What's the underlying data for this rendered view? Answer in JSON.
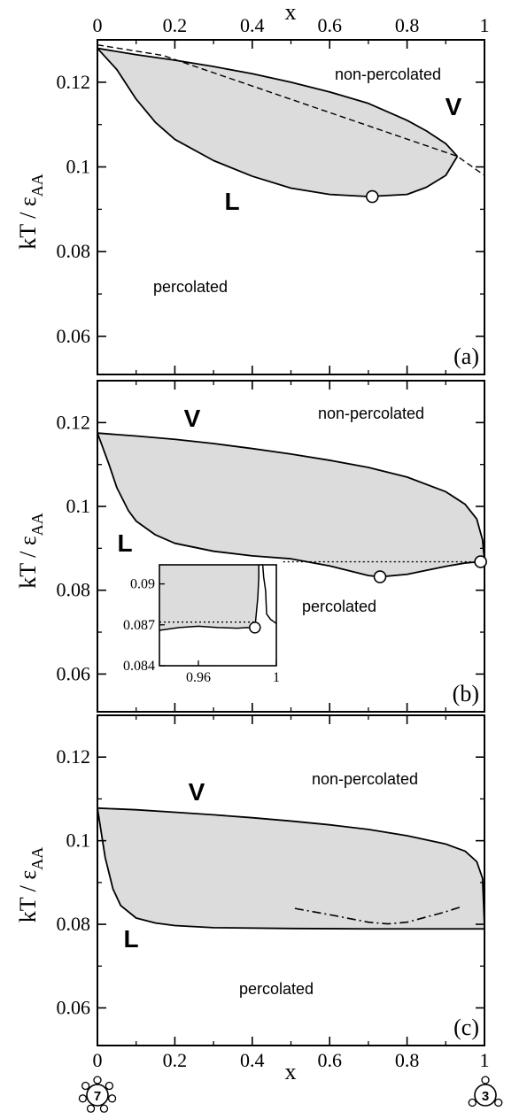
{
  "figure": {
    "x_axis_label": "x",
    "y_axis_label_main": "kT / ε",
    "y_axis_label_sub": "AA",
    "x_tick_labels": [
      "0",
      "0.2",
      "0.4",
      "0.6",
      "0.8",
      "1"
    ],
    "y_tick_labels": [
      "0.06",
      "0.08",
      "0.1",
      "0.12"
    ],
    "molecule_left_label": "7",
    "molecule_right_label": "3"
  },
  "chart_data": [
    {
      "type": "area",
      "panel_label": "(a)",
      "xlim": [
        0,
        1
      ],
      "ylim": [
        0.051,
        0.13
      ],
      "grid": false,
      "labels": {
        "vapor": "V",
        "liquid": "L",
        "upper_region": "non-percolated",
        "lower_region": "percolated"
      },
      "dew_curve": {
        "x": [
          0,
          0.1,
          0.2,
          0.3,
          0.4,
          0.5,
          0.6,
          0.7,
          0.8,
          0.85,
          0.9,
          0.93
        ],
        "y": [
          0.128,
          0.1265,
          0.1252,
          0.1237,
          0.122,
          0.12,
          0.1177,
          0.115,
          0.111,
          0.1085,
          0.1055,
          0.1025
        ]
      },
      "bubble_curve": {
        "x": [
          0,
          0.05,
          0.1,
          0.15,
          0.2,
          0.3,
          0.4,
          0.5,
          0.6,
          0.7,
          0.8,
          0.85,
          0.9,
          0.93
        ],
        "y": [
          0.128,
          0.123,
          0.116,
          0.1105,
          0.1065,
          0.1015,
          0.0978,
          0.095,
          0.0935,
          0.093,
          0.0935,
          0.0952,
          0.098,
          0.1025
        ]
      },
      "percolation_line": {
        "x": [
          0,
          0.17,
          0.93,
          1.0
        ],
        "y": [
          0.1288,
          0.1263,
          0.1025,
          0.098
        ]
      },
      "critical_points": [
        {
          "x": 0.71,
          "y": 0.093
        }
      ]
    },
    {
      "type": "area",
      "panel_label": "(b)",
      "xlim": [
        0,
        1
      ],
      "ylim": [
        0.051,
        0.13
      ],
      "grid": false,
      "labels": {
        "vapor": "V",
        "liquid": "L",
        "upper_region": "non-percolated",
        "lower_region": "percolated"
      },
      "dew_curve": {
        "x": [
          0,
          0.1,
          0.2,
          0.3,
          0.4,
          0.5,
          0.6,
          0.7,
          0.8,
          0.9,
          0.95,
          0.98,
          0.995,
          1.0
        ],
        "y": [
          0.1175,
          0.1168,
          0.116,
          0.115,
          0.1138,
          0.1125,
          0.111,
          0.1093,
          0.107,
          0.1035,
          0.1005,
          0.097,
          0.092,
          0.087
        ]
      },
      "bubble_curve": {
        "x": [
          0,
          0.03,
          0.05,
          0.08,
          0.1,
          0.15,
          0.2,
          0.3,
          0.4,
          0.5,
          0.6,
          0.7,
          0.73,
          0.8,
          0.9,
          0.95,
          0.99
        ],
        "y": [
          0.1175,
          0.11,
          0.1045,
          0.099,
          0.0965,
          0.0932,
          0.0912,
          0.0893,
          0.0882,
          0.0875,
          0.0858,
          0.0835,
          0.0832,
          0.0838,
          0.0857,
          0.0865,
          0.0868
        ]
      },
      "three_phase_line": {
        "x": [
          0.48,
          0.99
        ],
        "y": [
          0.0868,
          0.0868
        ]
      },
      "critical_points": [
        {
          "x": 0.73,
          "y": 0.0832
        },
        {
          "x": 0.99,
          "y": 0.0868
        }
      ],
      "inset": {
        "xlim": [
          0.94,
          1.0
        ],
        "ylim": [
          0.084,
          0.0914
        ],
        "x_tick_labels": [
          "0.96",
          "1"
        ],
        "y_tick_labels": [
          "0.084",
          "0.087",
          "0.09"
        ],
        "bubble_curve": {
          "x": [
            0.94,
            0.95,
            0.96,
            0.97,
            0.98,
            0.985,
            0.989
          ],
          "y": [
            0.0866,
            0.0868,
            0.0869,
            0.0868,
            0.08675,
            0.0868,
            0.08675
          ]
        },
        "dew_curve": {
          "x": [
            0.989,
            0.9895,
            0.9905,
            0.991,
            0.991
          ],
          "y": [
            0.08675,
            0.0875,
            0.089,
            0.0905,
            0.0914
          ]
        },
        "dew_curve_2": {
          "x": [
            0.993,
            0.9935,
            0.9945,
            0.995,
            0.997,
            1.0
          ],
          "y": [
            0.0914,
            0.0905,
            0.0895,
            0.0878,
            0.0874,
            0.0871
          ]
        },
        "three_phase_line": {
          "x": [
            0.94,
            0.989
          ],
          "y": [
            0.0872,
            0.0872
          ]
        },
        "critical_points": [
          {
            "x": 0.989,
            "y": 0.0868
          }
        ]
      }
    },
    {
      "type": "area",
      "panel_label": "(c)",
      "xlim": [
        0,
        1
      ],
      "ylim": [
        0.051,
        0.13
      ],
      "grid": false,
      "labels": {
        "vapor": "V",
        "liquid": "L",
        "upper_region": "non-percolated",
        "lower_region": "percolated"
      },
      "dew_curve": {
        "x": [
          0,
          0.1,
          0.2,
          0.3,
          0.4,
          0.5,
          0.6,
          0.7,
          0.8,
          0.9,
          0.95,
          0.98,
          0.995,
          1.0
        ],
        "y": [
          0.1078,
          0.1074,
          0.1068,
          0.1062,
          0.1055,
          0.1047,
          0.1038,
          0.1027,
          0.1012,
          0.0992,
          0.0975,
          0.095,
          0.091,
          0.0795
        ]
      },
      "bubble_curve": {
        "x": [
          0,
          0.02,
          0.04,
          0.06,
          0.1,
          0.15,
          0.2,
          0.3,
          0.5,
          0.7,
          0.9,
          1.0
        ],
        "y": [
          0.1078,
          0.096,
          0.0885,
          0.0845,
          0.0815,
          0.0803,
          0.0797,
          0.0792,
          0.079,
          0.0789,
          0.0789,
          0.0789
        ]
      },
      "dash_dot_curve": {
        "x": [
          0.51,
          0.6,
          0.7,
          0.75,
          0.8,
          0.9,
          0.94
        ],
        "y": [
          0.0838,
          0.0823,
          0.0805,
          0.0801,
          0.0805,
          0.083,
          0.0842
        ]
      }
    }
  ]
}
